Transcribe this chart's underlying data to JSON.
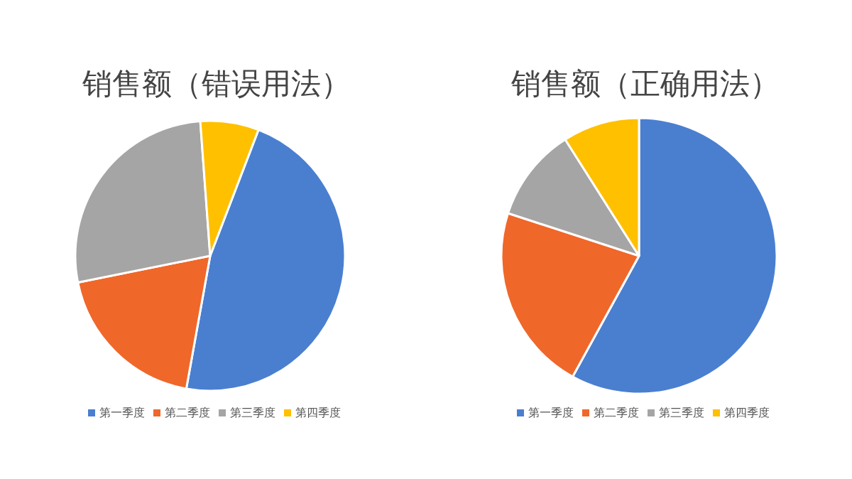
{
  "chart_data": [
    {
      "type": "pie",
      "title": "销售额（错误用法）",
      "categories": [
        "第一季度",
        "第二季度",
        "第三季度",
        "第四季度"
      ],
      "values": [
        47,
        19,
        27,
        7
      ],
      "colors": [
        "#4a7fd0",
        "#f0672a",
        "#a5a5a5",
        "#ffc000"
      ],
      "legend": "bottom"
    },
    {
      "type": "pie",
      "title": "销售额（正确用法）",
      "categories": [
        "第一季度",
        "第二季度",
        "第三季度",
        "第四季度"
      ],
      "values": [
        58,
        22,
        11,
        9
      ],
      "colors": [
        "#4a7fd0",
        "#f0672a",
        "#a5a5a5",
        "#ffc000"
      ],
      "legend": "bottom"
    }
  ]
}
